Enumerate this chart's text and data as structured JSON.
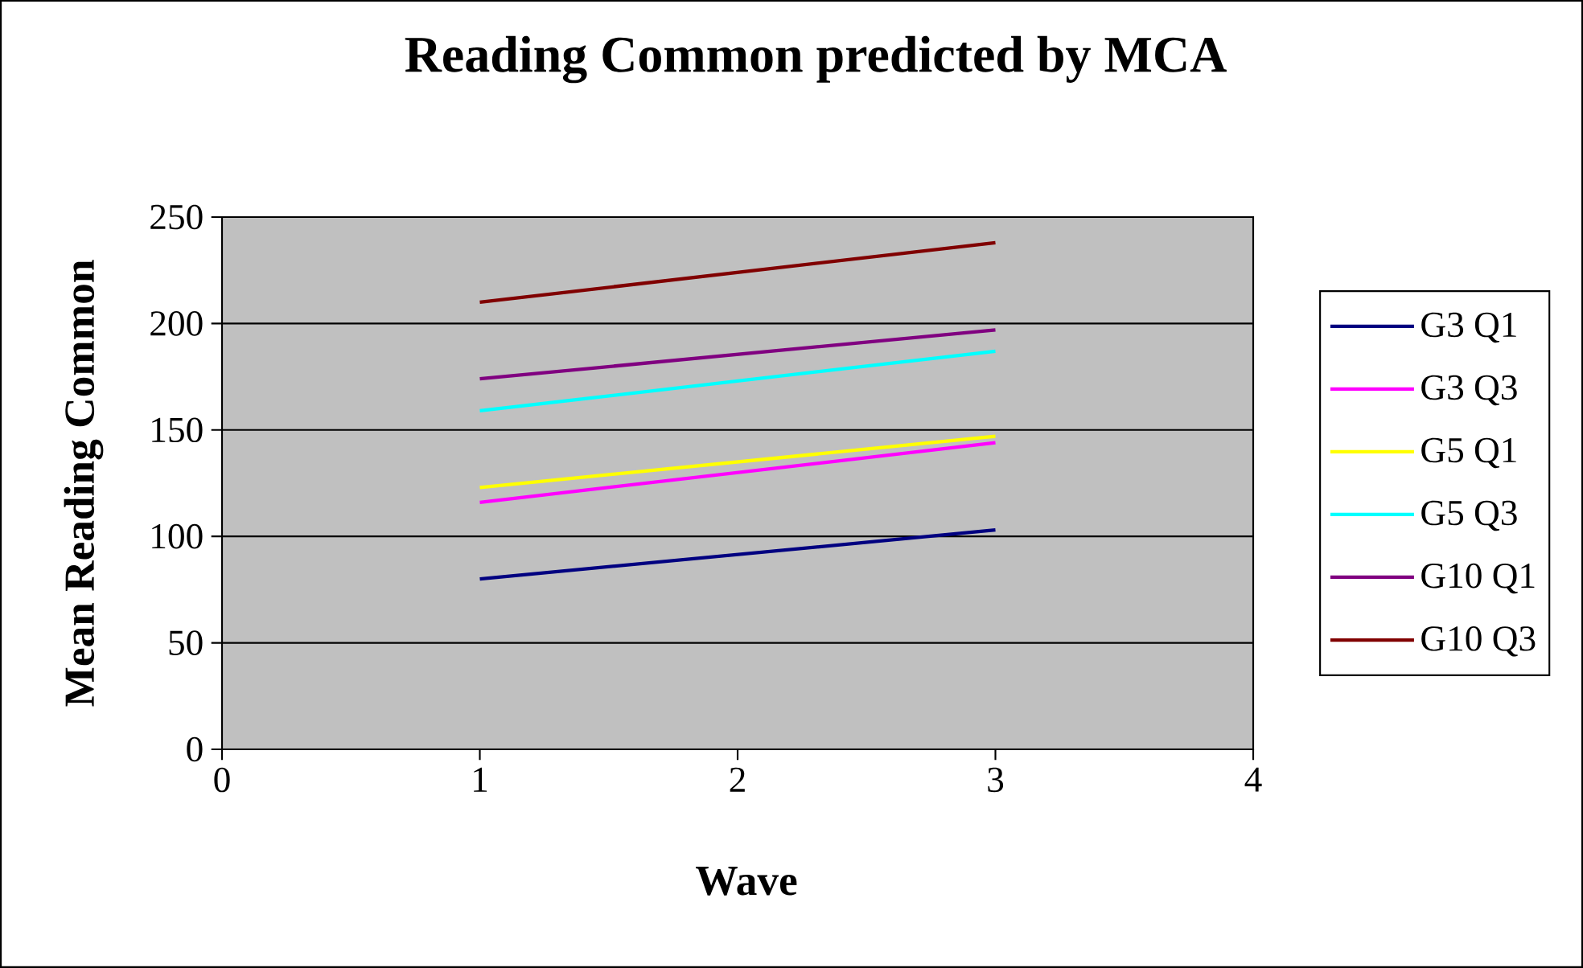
{
  "chart_data": {
    "type": "line",
    "title": "Reading Common predicted by MCA",
    "xlabel": "Wave",
    "ylabel": "Mean Reading Common",
    "x": [
      1,
      3
    ],
    "xlim": [
      0,
      4
    ],
    "xticks": [
      0,
      1,
      2,
      3,
      4
    ],
    "ylim": [
      0,
      250
    ],
    "yticks": [
      0,
      50,
      100,
      150,
      200,
      250
    ],
    "grid": "y",
    "legend": "right",
    "series": [
      {
        "name": "G3 Q1",
        "color": "#000080",
        "values": [
          80,
          103
        ]
      },
      {
        "name": "G3 Q3",
        "color": "#ff00ff",
        "values": [
          116,
          144
        ]
      },
      {
        "name": "G5 Q1",
        "color": "#ffff00",
        "values": [
          123,
          147
        ]
      },
      {
        "name": "G5 Q3",
        "color": "#00ffff",
        "values": [
          159,
          187
        ]
      },
      {
        "name": "G10 Q1",
        "color": "#800080",
        "values": [
          174,
          197
        ]
      },
      {
        "name": "G10 Q3",
        "color": "#800000",
        "values": [
          210,
          238
        ]
      }
    ]
  }
}
